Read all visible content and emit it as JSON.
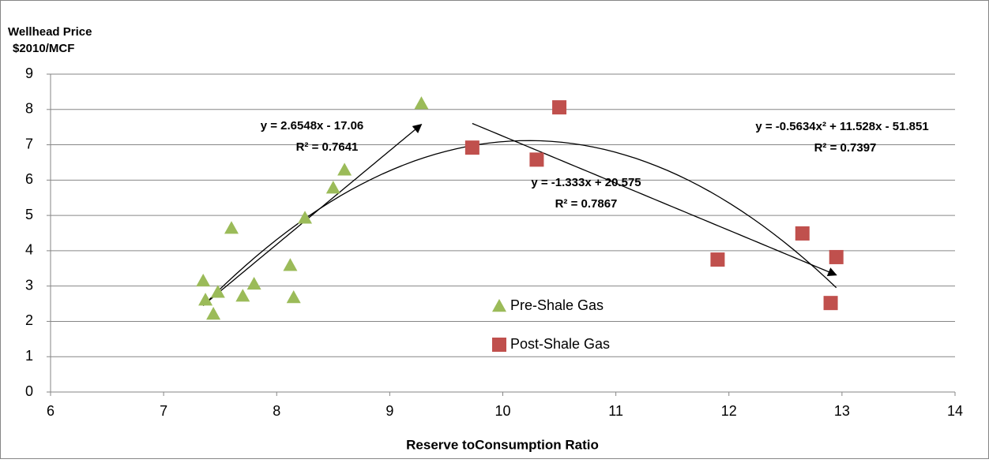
{
  "chart_data": {
    "type": "scatter",
    "y_label": "Wellhead Price",
    "y_unit": "$2010/MCF",
    "x_label": "Reserve toConsumption Ratio",
    "xlim": [
      6,
      14
    ],
    "xticks": [
      6,
      7,
      8,
      9,
      10,
      11,
      12,
      13,
      14
    ],
    "ylim": [
      0,
      9
    ],
    "yticks": [
      0,
      1,
      2,
      3,
      4,
      5,
      6,
      7,
      8,
      9
    ],
    "grid": true,
    "series": [
      {
        "name": "Pre-Shale Gas",
        "color": "#9bbb59",
        "marker": "triangle",
        "x": [
          7.35,
          7.37,
          7.44,
          7.48,
          7.6,
          7.7,
          7.8,
          8.12,
          8.15,
          8.25,
          8.5,
          8.6,
          9.28
        ],
        "y": [
          3.15,
          2.61,
          2.21,
          2.83,
          4.64,
          2.72,
          3.06,
          3.59,
          2.68,
          4.93,
          5.78,
          6.29,
          8.17
        ],
        "trendline": {
          "equation": "y = 2.6548x - 17.06",
          "r_squared": "R² = 0.7641",
          "coefficients": [
            2.6548,
            -17.06
          ]
        }
      },
      {
        "name": "Post-Shale Gas",
        "color": "#c0504d",
        "marker": "square",
        "x": [
          9.73,
          10.3,
          10.5,
          11.9,
          12.65,
          12.95,
          12.9
        ],
        "y": [
          6.92,
          6.58,
          8.06,
          3.75,
          4.49,
          3.82,
          2.52
        ],
        "trendline": {
          "equation": "y = -1.333x + 20.575",
          "r_squared": "R² = 0.7867",
          "coefficients": [
            -1.333,
            20.575
          ]
        }
      }
    ],
    "trendline": {
      "equation": "y = -0.5634x² + 11.528x - 51.851",
      "r_squared": "R² = 0.7397",
      "coefficients": [
        -0.5634,
        11.528,
        -51.851
      ]
    }
  }
}
